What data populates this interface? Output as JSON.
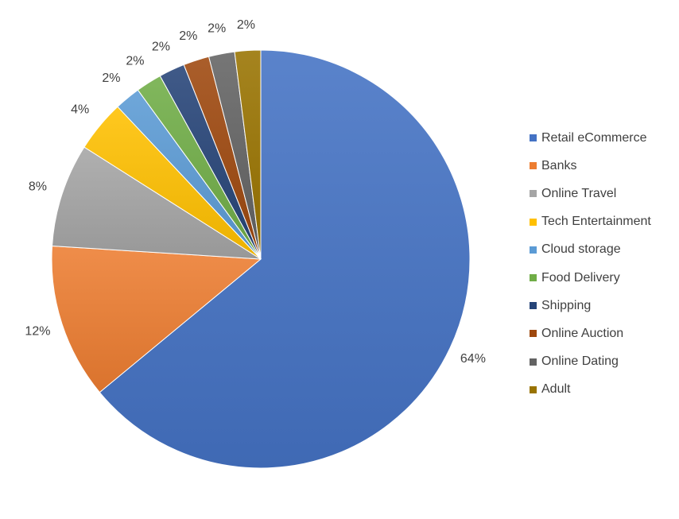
{
  "chart_data": {
    "type": "pie",
    "title": "",
    "legend_position": "right",
    "slices": [
      {
        "label": "Retail eCommerce",
        "value": 64,
        "value_label": "64%",
        "color": "#4472C4"
      },
      {
        "label": "Banks",
        "value": 12,
        "value_label": "12%",
        "color": "#ED7D31"
      },
      {
        "label": "Online Travel",
        "value": 8,
        "value_label": "8%",
        "color": "#A5A5A5"
      },
      {
        "label": "Tech Entertainment",
        "value": 4,
        "value_label": "4%",
        "color": "#FFC000"
      },
      {
        "label": "Cloud storage",
        "value": 2,
        "value_label": "2%",
        "color": "#5B9BD5"
      },
      {
        "label": "Food Delivery",
        "value": 2,
        "value_label": "2%",
        "color": "#70AD47"
      },
      {
        "label": "Shipping",
        "value": 2,
        "value_label": "2%",
        "color": "#264478"
      },
      {
        "label": "Online Auction",
        "value": 2,
        "value_label": "2%",
        "color": "#9E480E"
      },
      {
        "label": "Online Dating",
        "value": 2,
        "value_label": "2%",
        "color": "#636363"
      },
      {
        "label": "Adult",
        "value": 2,
        "value_label": "2%",
        "color": "#997300"
      }
    ]
  }
}
